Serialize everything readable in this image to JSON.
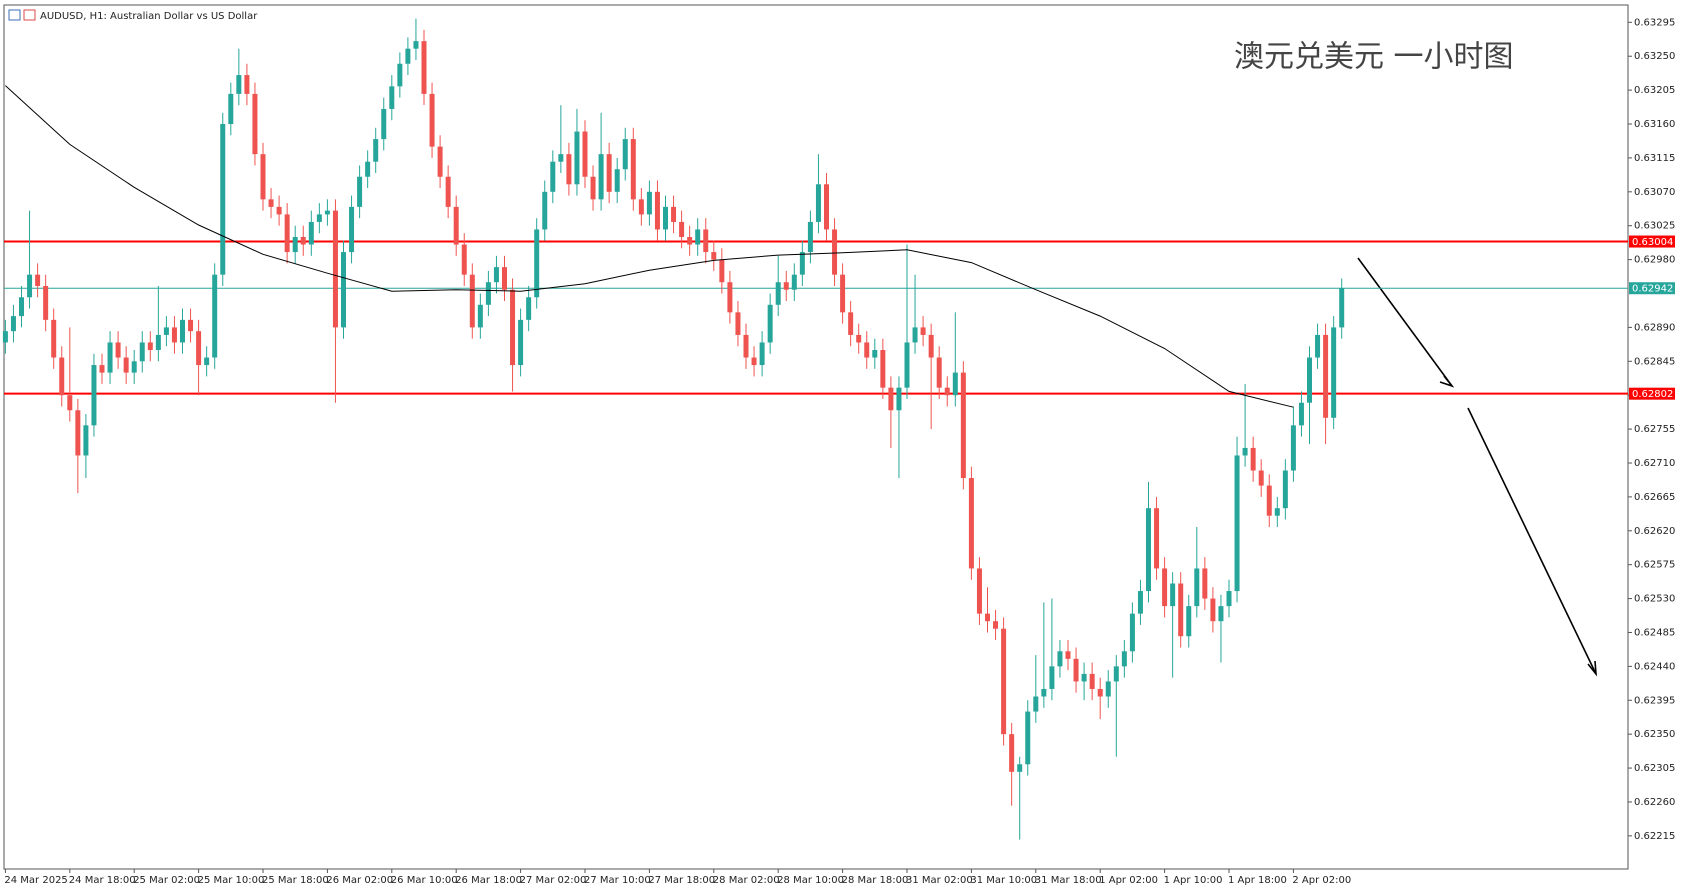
{
  "chart_data": {
    "type": "candlestick",
    "title": "AUDUSD, H1:  Australian Dollar vs US Dollar",
    "annotation": "澳元兑美元 一小时图",
    "bull_color": "#26a69a",
    "bear_color": "#ef5350",
    "ylim": [
      0.62171,
      0.63318
    ],
    "yticks": [
      0.63295,
      {
        "value": 0.6325,
        "label": "0.63250"
      },
      0.63205,
      {
        "value": 0.6316,
        "label": "0.63160"
      },
      0.63115,
      {
        "value": 0.6307,
        "label": "0.63070"
      },
      0.63025,
      {
        "value": 0.6298,
        "label": "0.62980"
      },
      {
        "value": 0.6289,
        "label": "0.62890"
      },
      0.62845,
      {
        "value": 0.628,
        "label": "0.62800"
      },
      0.62755,
      {
        "value": 0.6271,
        "label": "0.62710"
      },
      0.62665,
      {
        "value": 0.6262,
        "label": "0.62620"
      },
      0.62575,
      {
        "value": 0.6253,
        "label": "0.62530"
      },
      0.62485,
      {
        "value": 0.6244,
        "label": "0.62440"
      },
      0.62395,
      {
        "value": 0.6235,
        "label": "0.62350"
      },
      0.62305,
      {
        "value": 0.6226,
        "label": "0.62260"
      },
      0.62215
    ],
    "xticks": [
      "24 Mar 2025",
      "24 Mar 18:00",
      "25 Mar 02:00",
      "25 Mar 10:00",
      "25 Mar 18:00",
      "26 Mar 02:00",
      "26 Mar 10:00",
      "26 Mar 18:00",
      "27 Mar 02:00",
      "27 Mar 10:00",
      "27 Mar 18:00",
      "28 Mar 02:00",
      "28 Mar 10:00",
      "28 Mar 18:00",
      "31 Mar 02:00",
      "31 Mar 10:00",
      "31 Mar 18:00",
      "1 Apr 02:00",
      "1 Apr 10:00",
      "1 Apr 18:00",
      "2 Apr 02:00"
    ],
    "levels": [
      {
        "value": 0.63004,
        "color": "#ff0000"
      },
      {
        "value": 0.62802,
        "color": "#ff0000"
      },
      {
        "value": 0.62942,
        "color": "#26a69a"
      }
    ],
    "ma": {
      "color": "#000000",
      "values": [
        0.63211,
        0.63133,
        0.63076,
        0.63026,
        0.62987,
        0.62962,
        0.62938,
        0.6294,
        0.62938,
        0.62948,
        0.62966,
        0.62979,
        0.62986,
        0.62989,
        0.62993,
        0.62976,
        0.6294,
        0.62905,
        0.62862,
        0.62805,
        0.62784
      ]
    },
    "ohlc": [
      [
        0.6287,
        0.629,
        0.62855,
        0.62885
      ],
      [
        0.62885,
        0.6292,
        0.6287,
        0.62905
      ],
      [
        0.62905,
        0.62945,
        0.6289,
        0.6293
      ],
      [
        0.6293,
        0.63045,
        0.62915,
        0.6296
      ],
      [
        0.6296,
        0.62975,
        0.6293,
        0.62945
      ],
      [
        0.62945,
        0.6296,
        0.62885,
        0.629
      ],
      [
        0.629,
        0.62915,
        0.62835,
        0.6285
      ],
      [
        0.6285,
        0.62865,
        0.62785,
        0.628
      ],
      [
        0.628,
        0.6289,
        0.62765,
        0.6278
      ],
      [
        0.6278,
        0.62795,
        0.6267,
        0.6272
      ],
      [
        0.6272,
        0.62775,
        0.6269,
        0.6276
      ],
      [
        0.6276,
        0.62855,
        0.62745,
        0.6284
      ],
      [
        0.6284,
        0.62855,
        0.62815,
        0.6283
      ],
      [
        0.6283,
        0.62885,
        0.62815,
        0.6287
      ],
      [
        0.6287,
        0.62885,
        0.62835,
        0.6285
      ],
      [
        0.6285,
        0.62865,
        0.62815,
        0.6283
      ],
      [
        0.6283,
        0.6286,
        0.62815,
        0.62845
      ],
      [
        0.62845,
        0.62885,
        0.6283,
        0.6287
      ],
      [
        0.6287,
        0.62885,
        0.62845,
        0.6286
      ],
      [
        0.6286,
        0.62945,
        0.62845,
        0.6288
      ],
      [
        0.6288,
        0.62905,
        0.62865,
        0.6289
      ],
      [
        0.6289,
        0.62905,
        0.62855,
        0.6287
      ],
      [
        0.6287,
        0.62915,
        0.62855,
        0.629
      ],
      [
        0.629,
        0.62915,
        0.6287,
        0.62885
      ],
      [
        0.62885,
        0.629,
        0.628,
        0.6284
      ],
      [
        0.6284,
        0.62865,
        0.62825,
        0.6285
      ],
      [
        0.6285,
        0.62975,
        0.62835,
        0.6296
      ],
      [
        0.6296,
        0.63175,
        0.62945,
        0.6316
      ],
      [
        0.6316,
        0.63215,
        0.63145,
        0.632
      ],
      [
        0.632,
        0.6326,
        0.63185,
        0.63225
      ],
      [
        0.63225,
        0.6324,
        0.63185,
        0.632
      ],
      [
        0.632,
        0.63215,
        0.63105,
        0.6312
      ],
      [
        0.6312,
        0.63135,
        0.63045,
        0.6306
      ],
      [
        0.6306,
        0.63075,
        0.63035,
        0.6305
      ],
      [
        0.6305,
        0.63065,
        0.63025,
        0.6304
      ],
      [
        0.6304,
        0.63055,
        0.62975,
        0.6299
      ],
      [
        0.6299,
        0.63025,
        0.62975,
        0.6301
      ],
      [
        0.6301,
        0.63025,
        0.62985,
        0.63
      ],
      [
        0.63,
        0.63045,
        0.62985,
        0.6303
      ],
      [
        0.6303,
        0.63055,
        0.63015,
        0.6304
      ],
      [
        0.6304,
        0.6306,
        0.63025,
        0.63045
      ],
      [
        0.63045,
        0.6306,
        0.6279,
        0.6289
      ],
      [
        0.6289,
        0.63005,
        0.62875,
        0.6299
      ],
      [
        0.6299,
        0.63065,
        0.62975,
        0.6305
      ],
      [
        0.6305,
        0.63105,
        0.63035,
        0.6309
      ],
      [
        0.6309,
        0.63125,
        0.63075,
        0.6311
      ],
      [
        0.6311,
        0.63155,
        0.63095,
        0.6314
      ],
      [
        0.6314,
        0.63195,
        0.63125,
        0.6318
      ],
      [
        0.6318,
        0.63225,
        0.63165,
        0.6321
      ],
      [
        0.6321,
        0.63255,
        0.63195,
        0.6324
      ],
      [
        0.6324,
        0.63275,
        0.63225,
        0.6326
      ],
      [
        0.6326,
        0.633,
        0.63245,
        0.6327
      ],
      [
        0.6327,
        0.63285,
        0.63185,
        0.632
      ],
      [
        0.632,
        0.63215,
        0.63115,
        0.6313
      ],
      [
        0.6313,
        0.63145,
        0.63075,
        0.6309
      ],
      [
        0.6309,
        0.63105,
        0.63035,
        0.6305
      ],
      [
        0.6305,
        0.63065,
        0.62985,
        0.63
      ],
      [
        0.63,
        0.63015,
        0.62945,
        0.6296
      ],
      [
        0.6296,
        0.62975,
        0.62875,
        0.6289
      ],
      [
        0.6289,
        0.62935,
        0.62875,
        0.6292
      ],
      [
        0.6292,
        0.62965,
        0.62905,
        0.6295
      ],
      [
        0.6295,
        0.62985,
        0.62935,
        0.6297
      ],
      [
        0.6297,
        0.62985,
        0.62925,
        0.6294
      ],
      [
        0.6294,
        0.62955,
        0.62805,
        0.6284
      ],
      [
        0.6284,
        0.62915,
        0.62825,
        0.629
      ],
      [
        0.629,
        0.62945,
        0.62885,
        0.6293
      ],
      [
        0.6293,
        0.63035,
        0.62915,
        0.6302
      ],
      [
        0.6302,
        0.63085,
        0.63005,
        0.6307
      ],
      [
        0.6307,
        0.63125,
        0.63055,
        0.6311
      ],
      [
        0.6311,
        0.63185,
        0.63095,
        0.6312
      ],
      [
        0.6312,
        0.63135,
        0.63065,
        0.6308
      ],
      [
        0.6308,
        0.6318,
        0.63065,
        0.6315
      ],
      [
        0.6315,
        0.63165,
        0.63075,
        0.6309
      ],
      [
        0.6309,
        0.63105,
        0.63045,
        0.6306
      ],
      [
        0.6306,
        0.63175,
        0.63045,
        0.6312
      ],
      [
        0.6312,
        0.63135,
        0.63055,
        0.6307
      ],
      [
        0.6307,
        0.63115,
        0.63055,
        0.631
      ],
      [
        0.631,
        0.63155,
        0.63085,
        0.6314
      ],
      [
        0.6314,
        0.63155,
        0.63045,
        0.6306
      ],
      [
        0.6306,
        0.63075,
        0.63025,
        0.6304
      ],
      [
        0.6304,
        0.63085,
        0.63025,
        0.6307
      ],
      [
        0.6307,
        0.63085,
        0.63005,
        0.6302
      ],
      [
        0.6302,
        0.63065,
        0.63005,
        0.6305
      ],
      [
        0.6305,
        0.63065,
        0.63015,
        0.6303
      ],
      [
        0.6303,
        0.63045,
        0.62995,
        0.6301
      ],
      [
        0.6301,
        0.63025,
        0.62985,
        0.63
      ],
      [
        0.63,
        0.63035,
        0.62985,
        0.6302
      ],
      [
        0.6302,
        0.63035,
        0.62975,
        0.6299
      ],
      [
        0.6299,
        0.63005,
        0.62965,
        0.6298
      ],
      [
        0.6298,
        0.62995,
        0.62935,
        0.6295
      ],
      [
        0.6295,
        0.62965,
        0.62895,
        0.6291
      ],
      [
        0.6291,
        0.62925,
        0.62865,
        0.6288
      ],
      [
        0.6288,
        0.62895,
        0.62835,
        0.6285
      ],
      [
        0.6285,
        0.62865,
        0.62825,
        0.6284
      ],
      [
        0.6284,
        0.62885,
        0.62825,
        0.6287
      ],
      [
        0.6287,
        0.62935,
        0.62855,
        0.6292
      ],
      [
        0.6292,
        0.62985,
        0.62905,
        0.6295
      ],
      [
        0.6295,
        0.62965,
        0.62925,
        0.6294
      ],
      [
        0.6294,
        0.62975,
        0.62925,
        0.6296
      ],
      [
        0.6296,
        0.63005,
        0.62945,
        0.6299
      ],
      [
        0.6299,
        0.63045,
        0.62975,
        0.6303
      ],
      [
        0.6303,
        0.6312,
        0.63015,
        0.6308
      ],
      [
        0.6308,
        0.63095,
        0.63005,
        0.6302
      ],
      [
        0.6302,
        0.63035,
        0.62945,
        0.6296
      ],
      [
        0.6296,
        0.62975,
        0.62895,
        0.6291
      ],
      [
        0.6291,
        0.62925,
        0.62865,
        0.6288
      ],
      [
        0.6288,
        0.62895,
        0.62855,
        0.6287
      ],
      [
        0.6287,
        0.62885,
        0.62835,
        0.6285
      ],
      [
        0.6285,
        0.62875,
        0.62835,
        0.6286
      ],
      [
        0.6286,
        0.62875,
        0.62795,
        0.6281
      ],
      [
        0.6281,
        0.62825,
        0.6273,
        0.6278
      ],
      [
        0.6278,
        0.62825,
        0.6269,
        0.6281
      ],
      [
        0.6281,
        0.63,
        0.62795,
        0.6287
      ],
      [
        0.6287,
        0.6296,
        0.62855,
        0.6289
      ],
      [
        0.6289,
        0.62905,
        0.62865,
        0.6288
      ],
      [
        0.6288,
        0.62895,
        0.62755,
        0.6285
      ],
      [
        0.6285,
        0.62865,
        0.62795,
        0.6281
      ],
      [
        0.6281,
        0.62825,
        0.62785,
        0.628
      ],
      [
        0.628,
        0.6291,
        0.62785,
        0.6283
      ],
      [
        0.6283,
        0.62845,
        0.62675,
        0.6269
      ],
      [
        0.6269,
        0.62705,
        0.62555,
        0.6257
      ],
      [
        0.6257,
        0.62585,
        0.62495,
        0.6251
      ],
      [
        0.6251,
        0.62545,
        0.62485,
        0.625
      ],
      [
        0.625,
        0.62515,
        0.62475,
        0.6249
      ],
      [
        0.6249,
        0.62505,
        0.62335,
        0.6235
      ],
      [
        0.6235,
        0.62365,
        0.62255,
        0.623
      ],
      [
        0.623,
        0.6232,
        0.6221,
        0.6231
      ],
      [
        0.6231,
        0.62395,
        0.62295,
        0.6238
      ],
      [
        0.6238,
        0.62455,
        0.62365,
        0.624
      ],
      [
        0.624,
        0.62525,
        0.62385,
        0.6241
      ],
      [
        0.6241,
        0.6253,
        0.62395,
        0.6244
      ],
      [
        0.6244,
        0.62475,
        0.62425,
        0.6246
      ],
      [
        0.6246,
        0.62475,
        0.62435,
        0.6245
      ],
      [
        0.6245,
        0.62465,
        0.62405,
        0.6242
      ],
      [
        0.6242,
        0.62445,
        0.62395,
        0.6243
      ],
      [
        0.6243,
        0.62445,
        0.62395,
        0.6241
      ],
      [
        0.6241,
        0.62425,
        0.6237,
        0.624
      ],
      [
        0.624,
        0.62435,
        0.62385,
        0.6242
      ],
      [
        0.6242,
        0.62455,
        0.6232,
        0.6244
      ],
      [
        0.6244,
        0.62475,
        0.62425,
        0.6246
      ],
      [
        0.6246,
        0.62525,
        0.62445,
        0.6251
      ],
      [
        0.6251,
        0.62555,
        0.62495,
        0.6254
      ],
      [
        0.6254,
        0.62685,
        0.62525,
        0.6265
      ],
      [
        0.6265,
        0.62665,
        0.62555,
        0.6257
      ],
      [
        0.6257,
        0.62585,
        0.62505,
        0.6252
      ],
      [
        0.6252,
        0.62565,
        0.62425,
        0.6255
      ],
      [
        0.6255,
        0.62565,
        0.62465,
        0.6248
      ],
      [
        0.6248,
        0.62535,
        0.62465,
        0.6252
      ],
      [
        0.6252,
        0.62625,
        0.62505,
        0.6257
      ],
      [
        0.6257,
        0.62585,
        0.62515,
        0.6253
      ],
      [
        0.6253,
        0.62545,
        0.62485,
        0.625
      ],
      [
        0.625,
        0.62535,
        0.62445,
        0.6252
      ],
      [
        0.6252,
        0.62555,
        0.62505,
        0.6254
      ],
      [
        0.6254,
        0.62745,
        0.62525,
        0.6272
      ],
      [
        0.6272,
        0.62815,
        0.62705,
        0.6273
      ],
      [
        0.6273,
        0.62745,
        0.62685,
        0.627
      ],
      [
        0.627,
        0.62715,
        0.62665,
        0.6268
      ],
      [
        0.6268,
        0.62695,
        0.62625,
        0.6264
      ],
      [
        0.6264,
        0.62665,
        0.62625,
        0.6265
      ],
      [
        0.6265,
        0.62715,
        0.62635,
        0.627
      ],
      [
        0.627,
        0.62785,
        0.62685,
        0.6276
      ],
      [
        0.6276,
        0.62805,
        0.62745,
        0.6279
      ],
      [
        0.6279,
        0.62865,
        0.62735,
        0.6285
      ],
      [
        0.6285,
        0.62895,
        0.62835,
        0.6288
      ],
      [
        0.6288,
        0.62895,
        0.62735,
        0.6277
      ],
      [
        0.6277,
        0.62905,
        0.62755,
        0.6289
      ],
      [
        0.6289,
        0.62955,
        0.62875,
        0.62942
      ]
    ]
  }
}
